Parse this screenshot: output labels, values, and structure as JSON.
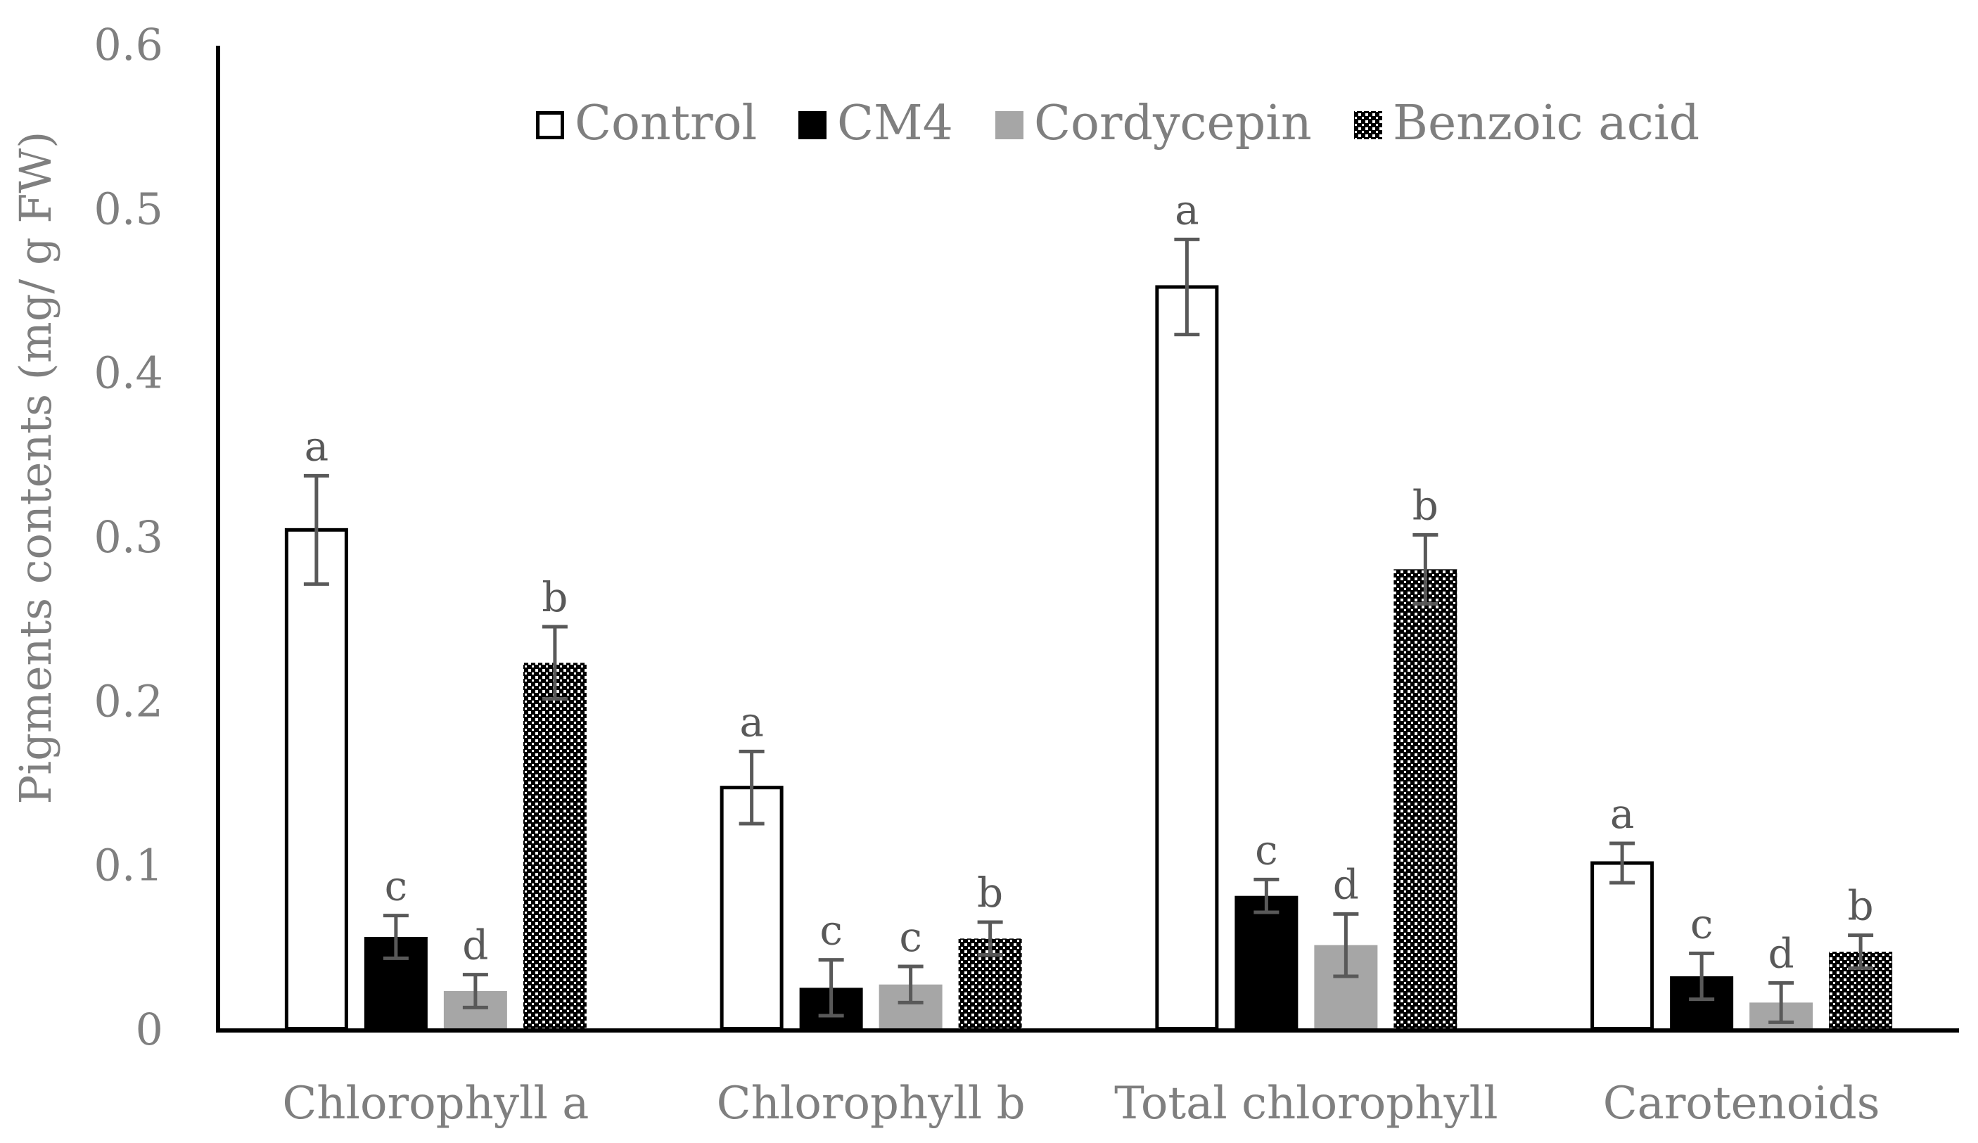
{
  "chart_data": {
    "type": "bar",
    "title": "",
    "xlabel": "",
    "ylabel": "Pigments contents (mg/ g FW)",
    "ylim": [
      0,
      0.6
    ],
    "yticks": [
      "0",
      "0.1",
      "0.2",
      "0.3",
      "0.4",
      "0.5",
      "0.6"
    ],
    "grid": false,
    "legend_position": "top",
    "categories": [
      "Chlorophyll a",
      "Chlorophyll b",
      "Total chlorophyll",
      "Carotenoids"
    ],
    "series": [
      {
        "name": "Control",
        "fill": "#ffffff",
        "stroke": "#000000",
        "pattern": "none",
        "values": [
          0.305,
          0.148,
          0.453,
          0.102
        ],
        "errors": [
          0.033,
          0.022,
          0.029,
          0.012
        ],
        "letters": [
          "a",
          "a",
          "a",
          "a"
        ]
      },
      {
        "name": "CM4",
        "fill": "#000000",
        "stroke": "#000000",
        "pattern": "none",
        "values": [
          0.057,
          0.026,
          0.082,
          0.033
        ],
        "errors": [
          0.013,
          0.017,
          0.01,
          0.014
        ],
        "letters": [
          "c",
          "c",
          "c",
          "c"
        ]
      },
      {
        "name": "Cordycepin",
        "fill": "#a6a6a6",
        "stroke": "#a6a6a6",
        "pattern": "none",
        "values": [
          0.024,
          0.028,
          0.052,
          0.017
        ],
        "errors": [
          0.01,
          0.011,
          0.019,
          0.012
        ],
        "letters": [
          "d",
          "c",
          "d",
          "d"
        ]
      },
      {
        "name": "Benzoic acid",
        "fill": "#000000",
        "stroke": "#000000",
        "pattern": "checker",
        "values": [
          0.224,
          0.056,
          0.281,
          0.048
        ],
        "errors": [
          0.022,
          0.01,
          0.021,
          0.01
        ],
        "letters": [
          "b",
          "b",
          "b",
          "b"
        ]
      }
    ]
  },
  "colors": {
    "axis": "#000000",
    "text": "#7f7f7f",
    "error_bar": "#595959",
    "letter": "#595959"
  }
}
